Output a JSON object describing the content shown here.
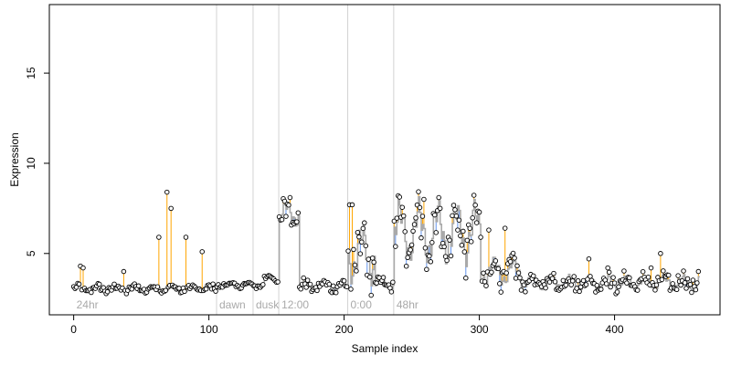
{
  "chart_data": {
    "type": "scatter",
    "title": "",
    "xlabel": "Sample index",
    "ylabel": "Expression",
    "xlim": [
      -18,
      478
    ],
    "ylim": [
      1.6,
      18.8
    ],
    "xticks": [
      0,
      100,
      200,
      300,
      400
    ],
    "yticks": [
      5,
      10,
      15
    ],
    "grid": false,
    "legend": "none",
    "colors": {
      "points": "#000000",
      "point_fill": "#ffffff",
      "residual_positive": "#ffa500",
      "residual_negative": "#6495ed",
      "fit_line": "#a9a9a9",
      "region_line": "#d3d3d3",
      "region_label": "#a9a9a9"
    },
    "regions": [
      {
        "label": "24hr",
        "start": 0
      },
      {
        "label": "dawn",
        "start": 106
      },
      {
        "label": "dusk",
        "start": 133
      },
      {
        "label": "12:00",
        "start": 152
      },
      {
        "label": "0:00",
        "start": 203
      },
      {
        "label": "48hr",
        "start": 237
      }
    ],
    "segments": [
      {
        "start": 0,
        "end": 105,
        "base": 3.05,
        "wave": 0.15,
        "noise": 0.12
      },
      {
        "start": 106,
        "end": 140,
        "base": 3.25,
        "wave": 0.1,
        "noise": 0.1
      },
      {
        "start": 141,
        "end": 151,
        "base": 3.6,
        "wave": 0.2,
        "noise": 0.15
      },
      {
        "start": 152,
        "end": 166,
        "base": 7.2,
        "wave": 0.5,
        "noise": 0.4
      },
      {
        "start": 167,
        "end": 202,
        "base": 3.2,
        "wave": 0.2,
        "noise": 0.2
      },
      {
        "start": 203,
        "end": 222,
        "base": 5.0,
        "wave": 1.2,
        "noise": 0.8
      },
      {
        "start": 223,
        "end": 236,
        "base": 3.3,
        "wave": 0.2,
        "noise": 0.2
      },
      {
        "start": 237,
        "end": 300,
        "base": 6.2,
        "wave": 1.3,
        "noise": 0.7
      },
      {
        "start": 301,
        "end": 330,
        "base": 4.0,
        "wave": 0.6,
        "noise": 0.5
      },
      {
        "start": 331,
        "end": 462,
        "base": 3.4,
        "wave": 0.3,
        "noise": 0.3
      }
    ],
    "spikes": [
      {
        "x": 5,
        "y": 4.3
      },
      {
        "x": 7,
        "y": 4.2
      },
      {
        "x": 37,
        "y": 4.0
      },
      {
        "x": 63,
        "y": 5.9
      },
      {
        "x": 69,
        "y": 8.4
      },
      {
        "x": 72,
        "y": 7.5
      },
      {
        "x": 83,
        "y": 5.9
      },
      {
        "x": 95,
        "y": 5.1
      },
      {
        "x": 156,
        "y": 7.9
      },
      {
        "x": 160,
        "y": 8.1
      },
      {
        "x": 204,
        "y": 7.7
      },
      {
        "x": 206,
        "y": 7.7
      },
      {
        "x": 240,
        "y": 8.2
      },
      {
        "x": 259,
        "y": 8.0
      },
      {
        "x": 271,
        "y": 7.5
      },
      {
        "x": 284,
        "y": 6.3
      },
      {
        "x": 301,
        "y": 5.9
      },
      {
        "x": 307,
        "y": 6.3
      },
      {
        "x": 319,
        "y": 6.4
      },
      {
        "x": 381,
        "y": 4.7
      },
      {
        "x": 395,
        "y": 4.2
      },
      {
        "x": 427,
        "y": 4.2
      },
      {
        "x": 434,
        "y": 5.0
      },
      {
        "x": 462,
        "y": 4.0
      }
    ]
  }
}
